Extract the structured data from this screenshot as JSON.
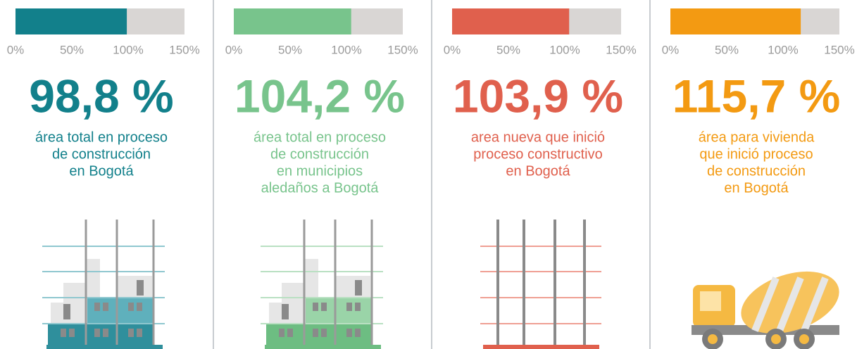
{
  "scale": {
    "xlim": [
      0,
      150
    ],
    "xticks": [
      {
        "value": 0,
        "label": "0%"
      },
      {
        "value": 50,
        "label": "50%"
      },
      {
        "value": 100,
        "label": "100%"
      },
      {
        "value": 150,
        "label": "150%"
      }
    ]
  },
  "panels": [
    {
      "value": 98.8,
      "value_label": "98,8 %",
      "color": "#12808b",
      "description": [
        "área total en proceso",
        "de construcción",
        "en Bogotá"
      ]
    },
    {
      "value": 104.2,
      "value_label": "104,2 %",
      "color": "#78c48c",
      "description": [
        "área total en proceso",
        "de construcción",
        "en municipios",
        "aledaños a Bogotá"
      ]
    },
    {
      "value": 103.9,
      "value_label": "103,9 %",
      "color": "#e0604d",
      "description": [
        "area nueva que inició",
        "proceso constructivo",
        "en Bogotá"
      ]
    },
    {
      "value": 115.7,
      "value_label": "115,7 %",
      "color": "#f39a12",
      "description": [
        "área para vivienda",
        "que inició proceso",
        "de construcción",
        "en Bogotá"
      ]
    }
  ]
}
